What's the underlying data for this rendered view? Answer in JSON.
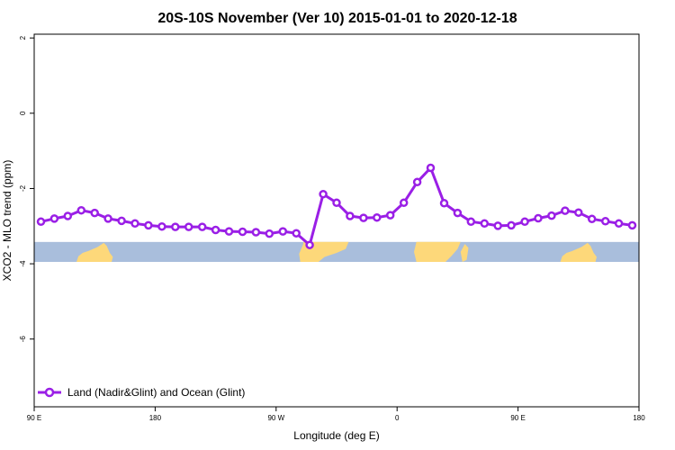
{
  "chart_data": {
    "type": "line",
    "title": "20S-10S November (Ver 10)   2015-01-01 to 2020-12-18",
    "xlabel": "Longitude (deg E)",
    "ylabel": "XCO2 - MLO trend (ppm)",
    "xlim": [
      90,
      540
    ],
    "ylim": [
      -7.8,
      2.1
    ],
    "x_tick_values": [
      90,
      180,
      270,
      360,
      450,
      540
    ],
    "x_tick_labels": [
      "90 E",
      "180",
      "90 W",
      "0",
      "90 E",
      "180"
    ],
    "y_tick_values": [
      2,
      0,
      -2,
      -4,
      -6
    ],
    "y_tick_labels": [
      "2",
      "0",
      "-2",
      "-4",
      "-6"
    ],
    "grid": false,
    "legend_position": "bottom-left",
    "land_band": {
      "y_top": -3.42,
      "y_bottom": -3.95,
      "ocean_color": "#a9bedc",
      "land_color": "#fdd87a"
    },
    "series": [
      {
        "name": "Land (Nadir&Glint) and Ocean (Glint)",
        "color": "#9a1fe6",
        "x": [
          95,
          105,
          115,
          125,
          135,
          145,
          155,
          165,
          175,
          185,
          195,
          205,
          215,
          225,
          235,
          245,
          255,
          265,
          275,
          285,
          295,
          305,
          315,
          325,
          335,
          345,
          355,
          365,
          375,
          385,
          395,
          405,
          415,
          425,
          435,
          445,
          455,
          465,
          475,
          485,
          495,
          505,
          515,
          525,
          535
        ],
        "y": [
          -2.88,
          -2.8,
          -2.73,
          -2.58,
          -2.65,
          -2.8,
          -2.86,
          -2.93,
          -2.98,
          -3.01,
          -3.02,
          -3.02,
          -3.02,
          -3.1,
          -3.14,
          -3.15,
          -3.16,
          -3.2,
          -3.14,
          -3.19,
          -3.5,
          -2.15,
          -2.38,
          -2.73,
          -2.78,
          -2.77,
          -2.71,
          -2.38,
          -1.83,
          -1.45,
          -2.39,
          -2.65,
          -2.88,
          -2.93,
          -2.99,
          -2.98,
          -2.88,
          -2.79,
          -2.72,
          -2.59,
          -2.64,
          -2.81,
          -2.87,
          -2.93,
          -2.98
        ]
      }
    ]
  }
}
